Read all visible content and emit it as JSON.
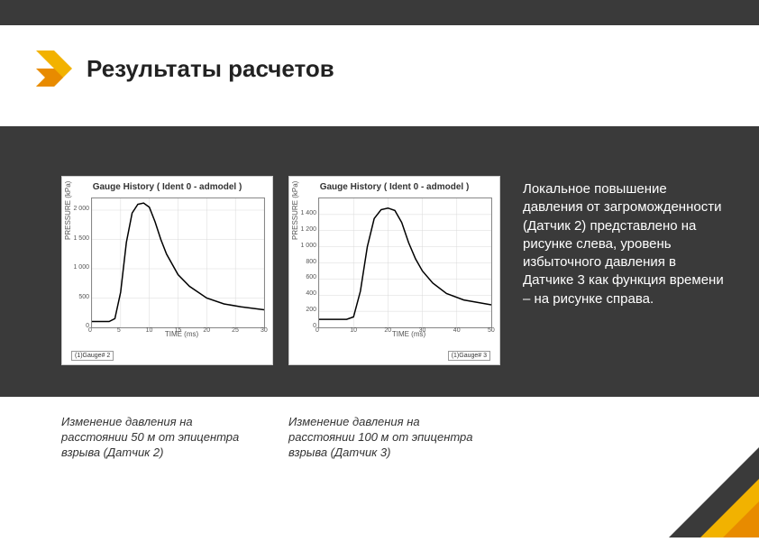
{
  "colors": {
    "bar": "#3a3a3a",
    "accent_yellow": "#f2b200",
    "accent_orange": "#e88b00",
    "chart_line": "#000000",
    "grid": "#d9d9d9",
    "axis": "#888888",
    "white": "#ffffff"
  },
  "title": "Результаты расчетов",
  "side_text": "Локальное повышение давления от загроможденности (Датчик 2) представлено на рисунке слева, уровень избыточного давления в Датчике 3 как функция времени – на рисунке справа.",
  "chart1": {
    "type": "line",
    "title": "Gauge History ( Ident 0 - admodel )",
    "xlabel": "TIME (ms)",
    "ylabel": "PRESSURE (kPa)",
    "legend": "(1)Gauge# 2",
    "legend_pos": "left",
    "xlim": [
      0,
      30
    ],
    "ylim": [
      0,
      2200
    ],
    "xticks": [
      0,
      5,
      10,
      15,
      20,
      25,
      30
    ],
    "yticks": [
      0,
      500,
      1000,
      1500,
      2000
    ],
    "grid": true,
    "grid_color": "#d9d9d9",
    "line_color": "#000000",
    "line_width": 1.5,
    "data": {
      "x": [
        0,
        3,
        4,
        5,
        6,
        7,
        8,
        9,
        10,
        11,
        12,
        13,
        15,
        17,
        20,
        23,
        26,
        30
      ],
      "y": [
        100,
        100,
        150,
        600,
        1450,
        1950,
        2100,
        2120,
        2050,
        1800,
        1500,
        1250,
        900,
        700,
        500,
        400,
        350,
        300
      ]
    }
  },
  "chart2": {
    "type": "line",
    "title": "Gauge History ( Ident 0 - admodel )",
    "xlabel": "TIME (ms)",
    "ylabel": "PRESSURE (kPa)",
    "legend": "(1)Gauge# 3",
    "legend_pos": "right",
    "xlim": [
      0,
      50
    ],
    "ylim": [
      0,
      1600
    ],
    "xticks": [
      0,
      10,
      20,
      30,
      40,
      50
    ],
    "yticks": [
      0,
      200,
      400,
      600,
      800,
      1000,
      1200,
      1400
    ],
    "grid": true,
    "grid_color": "#d9d9d9",
    "line_color": "#000000",
    "line_width": 1.5,
    "data": {
      "x": [
        0,
        8,
        10,
        12,
        14,
        16,
        18,
        20,
        22,
        24,
        26,
        28,
        30,
        33,
        37,
        42,
        50
      ],
      "y": [
        100,
        100,
        130,
        450,
        1000,
        1350,
        1460,
        1480,
        1450,
        1300,
        1050,
        850,
        700,
        550,
        420,
        340,
        280
      ]
    }
  },
  "caption1": "Изменение давления на расстоянии 50 м от эпицентра взрыва (Датчик 2)",
  "caption2": "Изменение давления на расстоянии 100 м от эпицентра взрыва (Датчик 3)"
}
